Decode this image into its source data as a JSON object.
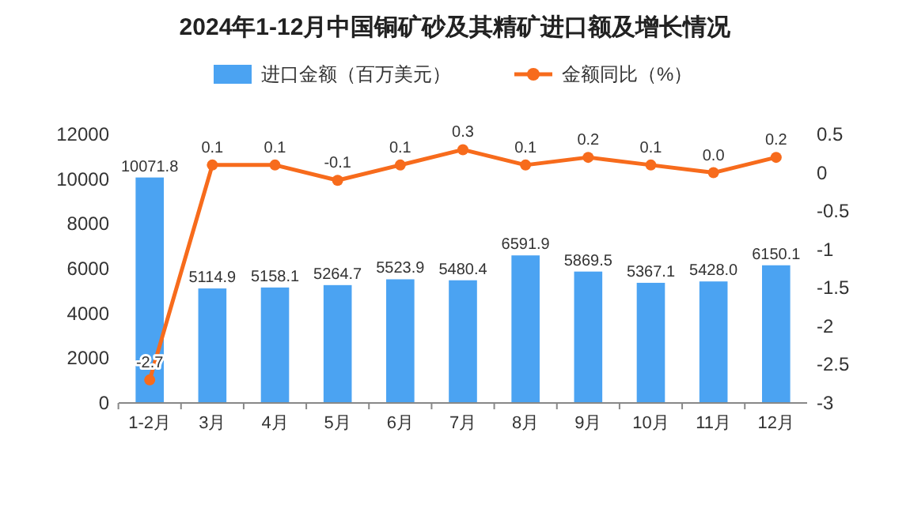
{
  "chart_data": {
    "type": "bar",
    "title": "2024年1-12月中国铜矿砂及其精矿进口额及增长情况",
    "categories": [
      "1-2月",
      "3月",
      "4月",
      "5月",
      "6月",
      "7月",
      "8月",
      "9月",
      "10月",
      "11月",
      "12月"
    ],
    "series": [
      {
        "name": "进口金额（百万美元）",
        "color": "#4ba3f2",
        "values": [
          10071.8,
          5114.9,
          5158.1,
          5264.7,
          5523.9,
          5480.4,
          6591.9,
          5869.5,
          5367.1,
          5428.0,
          6150.1
        ],
        "value_labels": [
          "10071.8",
          "5114.9",
          "5158.1",
          "5264.7",
          "5523.9",
          "5480.4",
          "6591.9",
          "5869.5",
          "5367.1",
          "5428.0",
          "6150.1"
        ]
      },
      {
        "name": "金额同比（%）",
        "type": "line",
        "axis": "y2",
        "color": "#f76b1c",
        "values": [
          -2.7,
          0.1,
          0.1,
          -0.1,
          0.1,
          0.3,
          0.1,
          0.2,
          0.1,
          0.0,
          0.2
        ],
        "value_labels": [
          "-2.7",
          "0.1",
          "0.1",
          "-0.1",
          "0.1",
          "0.3",
          "0.1",
          "0.2",
          "0.1",
          "0.0",
          "0.2"
        ]
      }
    ],
    "ylim": [
      0,
      12000
    ],
    "yticks": [
      0,
      2000,
      4000,
      6000,
      8000,
      10000,
      12000
    ],
    "y2lim": [
      -3,
      0.5
    ],
    "y2ticks": [
      -3,
      -2.5,
      -2,
      -1.5,
      -1,
      -0.5,
      0,
      0.5
    ],
    "grid": false,
    "legend": "top",
    "marker": "circle"
  }
}
